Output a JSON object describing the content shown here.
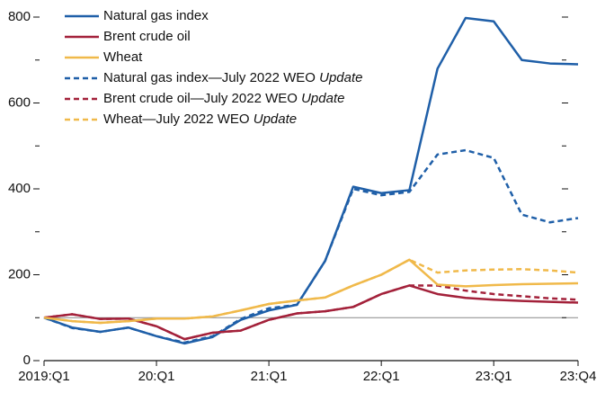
{
  "chart_data": {
    "type": "line",
    "categories": [
      "2019:Q1",
      null,
      null,
      null,
      "20:Q1",
      null,
      null,
      null,
      "21:Q1",
      null,
      null,
      null,
      "22:Q1",
      null,
      null,
      null,
      "23:Q1",
      null,
      null,
      "23:Q4"
    ],
    "series": [
      {
        "name": "Natural gas index",
        "color": "#1f5fa8",
        "dashed": false,
        "values": [
          100,
          77,
          67,
          77,
          57,
          40,
          55,
          95,
          117,
          130,
          232,
          405,
          390,
          397,
          680,
          798,
          790,
          700,
          692,
          690
        ]
      },
      {
        "name": "Brent crude oil",
        "color": "#a3213a",
        "dashed": false,
        "values": [
          100,
          108,
          97,
          98,
          80,
          50,
          65,
          70,
          95,
          110,
          115,
          125,
          155,
          175,
          155,
          146,
          142,
          139,
          137,
          135
        ]
      },
      {
        "name": "Wheat",
        "color": "#f0b94a",
        "dashed": false,
        "values": [
          100,
          92,
          88,
          92,
          98,
          98,
          103,
          117,
          132,
          140,
          147,
          175,
          200,
          235,
          177,
          173,
          176,
          178,
          179,
          180
        ]
      },
      {
        "name": "Natural gas index—July 2022 WEO Update",
        "color": "#1f5fa8",
        "dashed": true,
        "legend_italic_last_word": true,
        "values": [
          100,
          76,
          67,
          77,
          57,
          42,
          57,
          97,
          122,
          130,
          232,
          400,
          385,
          393,
          480,
          490,
          472,
          340,
          322,
          332
        ]
      },
      {
        "name": "Brent crude oil—July 2022 WEO Update",
        "color": "#a3213a",
        "dashed": true,
        "legend_italic_last_word": true,
        "values": [
          100,
          108,
          97,
          98,
          80,
          50,
          65,
          70,
          95,
          110,
          115,
          125,
          155,
          175,
          175,
          163,
          155,
          150,
          145,
          142
        ]
      },
      {
        "name": "Wheat—July 2022 WEO Update",
        "color": "#f0b94a",
        "dashed": true,
        "legend_italic_last_word": true,
        "values": [
          100,
          92,
          88,
          92,
          98,
          98,
          103,
          117,
          132,
          140,
          147,
          175,
          200,
          235,
          205,
          210,
          212,
          213,
          210,
          205
        ]
      }
    ],
    "ylim": [
      0,
      800
    ],
    "yticks": [
      0,
      200,
      400,
      600,
      800
    ],
    "minor_yticks": [
      100,
      300,
      500,
      700
    ],
    "reference_line": 100,
    "legend": "top-left"
  }
}
